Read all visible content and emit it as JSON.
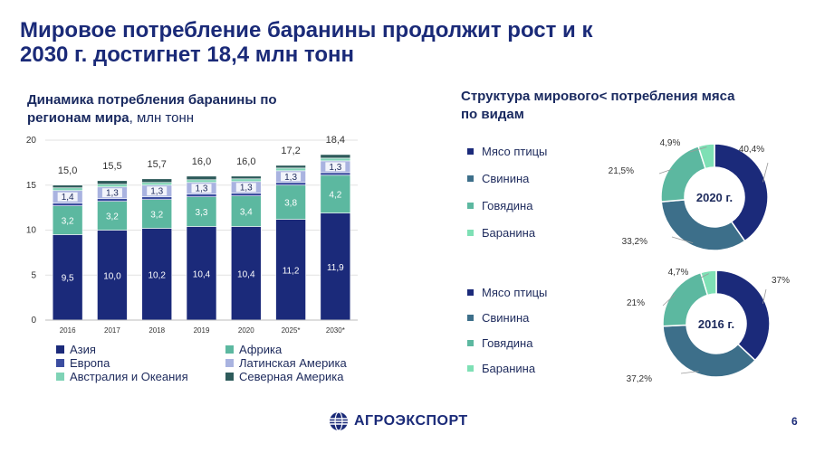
{
  "title": "Мировое потребление баранины продолжит рост и к 2030 г. достигнет 18,4 млн тонн",
  "left_subtitle": "Динамика потребления баранины по регионам мира",
  "left_subtitle_unit": ", млн тонн",
  "right_subtitle": "Структура мирового< потребления мяса по видам",
  "colors": {
    "asia": "#1b2a7a",
    "africa": "#5cb8a0",
    "europe": "#3b4da0",
    "latam": "#a9b3e0",
    "australia": "#7fd3b6",
    "namerica": "#2e5b5b",
    "poultry": "#1b2a7a",
    "pork": "#3d6f8a",
    "beef": "#5cb8a0",
    "mutton": "#7ee0b5"
  },
  "chart_data": [
    {
      "type": "bar",
      "stacked": true,
      "title": "Динамика потребления баранины по регионам мира, млн тонн",
      "categories": [
        "2016",
        "2017",
        "2018",
        "2019",
        "2020",
        "2025*",
        "2030*"
      ],
      "ylim": [
        0,
        20
      ],
      "yticks": [
        "0",
        "5",
        "10",
        "15",
        "20"
      ],
      "totals": [
        "15,0",
        "15,5",
        "15,7",
        "16,0",
        "16,0",
        "17,2",
        "18,4"
      ],
      "series": [
        {
          "name": "Азия",
          "key": "asia",
          "values": [
            9.5,
            10.0,
            10.2,
            10.4,
            10.4,
            11.2,
            11.9
          ],
          "labels": [
            "9,5",
            "10,0",
            "10,2",
            "10,4",
            "10,4",
            "11,2",
            "11,9"
          ]
        },
        {
          "name": "Африка",
          "key": "africa",
          "values": [
            3.2,
            3.2,
            3.2,
            3.3,
            3.4,
            3.8,
            4.2
          ],
          "labels": [
            "3,2",
            "3,2",
            "3,2",
            "3,3",
            "3,4",
            "3,8",
            "4,2"
          ]
        },
        {
          "name": "Европа",
          "key": "europe",
          "values": [
            0.3,
            0.3,
            0.3,
            0.3,
            0.3,
            0.3,
            0.3
          ],
          "labels": [
            "",
            "",
            "",
            "",
            "",
            "",
            ""
          ]
        },
        {
          "name": "Латинская Америка",
          "key": "latam",
          "values": [
            1.4,
            1.3,
            1.3,
            1.3,
            1.3,
            1.3,
            1.3
          ],
          "labels": [
            "1,4",
            "1,3",
            "1,3",
            "1,3",
            "1,3",
            "1,3",
            "1,3"
          ]
        },
        {
          "name": "Австралия и Океания",
          "key": "australia",
          "values": [
            0.3,
            0.3,
            0.3,
            0.3,
            0.3,
            0.3,
            0.3
          ],
          "labels": [
            "",
            "",
            "",
            "",
            "",
            "",
            ""
          ]
        },
        {
          "name": "Северная Америка",
          "key": "namerica",
          "values": [
            0.3,
            0.4,
            0.4,
            0.4,
            0.3,
            0.3,
            0.4
          ],
          "labels": [
            "",
            "",
            "",
            "",
            "",
            "",
            ""
          ]
        }
      ],
      "legend": [
        "Азия",
        "Африка",
        "Европа",
        "Латинская Америка",
        "Австралия и Океания",
        "Северная Америка"
      ]
    },
    {
      "type": "pie",
      "donut": true,
      "title": "2020 г.",
      "labels": [
        "Мясо птицы",
        "Свинина",
        "Говядина",
        "Баранина"
      ],
      "values": [
        40.4,
        33.2,
        21.5,
        4.9
      ],
      "value_labels": [
        "40,4%",
        "33,2%",
        "21,5%",
        "4,9%"
      ]
    },
    {
      "type": "pie",
      "donut": true,
      "title": "2016 г.",
      "labels": [
        "Мясо птицы",
        "Свинина",
        "Говядина",
        "Баранина"
      ],
      "values": [
        37,
        37.2,
        21,
        4.7
      ],
      "value_labels": [
        "37%",
        "37,2%",
        "21%",
        "4,7%"
      ]
    }
  ],
  "footer": {
    "brand": "АГРОЭКСПОРТ",
    "page": "6"
  }
}
